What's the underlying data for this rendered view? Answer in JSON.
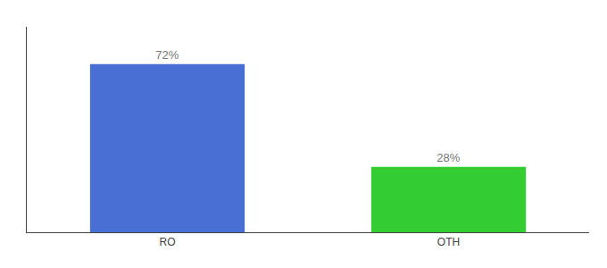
{
  "chart_data": {
    "type": "bar",
    "categories": [
      "RO",
      "OTH"
    ],
    "values": [
      72,
      28
    ],
    "value_labels": [
      "72%",
      "28%"
    ],
    "colors": [
      "#4a6fd4",
      "#33cc33"
    ],
    "ylim": [
      0,
      88
    ],
    "data_labels": true,
    "tick_labels": "x",
    "grid": false
  }
}
